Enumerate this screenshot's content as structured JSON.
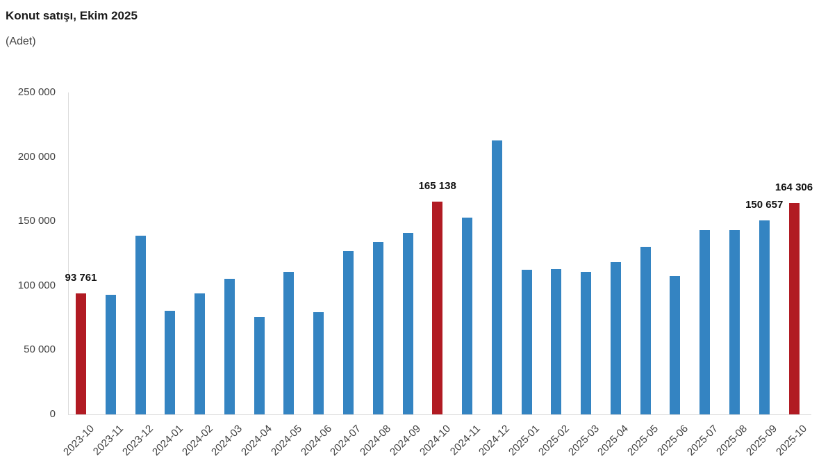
{
  "header": {
    "title": "Konut satışı, Ekim 2025",
    "subtitle": "(Adet)"
  },
  "chart_data": {
    "type": "bar",
    "title": "Konut satışı, Ekim 2025",
    "subtitle": "(Adet)",
    "xlabel": "",
    "ylabel": "Adet",
    "ylim": [
      0,
      250000
    ],
    "grid": false,
    "legend": "none",
    "categories": [
      "2023-10",
      "2023-11",
      "2023-12",
      "2024-01",
      "2024-02",
      "2024-03",
      "2024-04",
      "2024-05",
      "2024-06",
      "2024-07",
      "2024-08",
      "2024-09",
      "2024-10",
      "2024-11",
      "2024-12",
      "2025-01",
      "2025-02",
      "2025-03",
      "2025-04",
      "2025-05",
      "2025-06",
      "2025-07",
      "2025-08",
      "2025-09",
      "2025-10"
    ],
    "values": [
      93761,
      93014,
      138577,
      80308,
      93902,
      105476,
      75569,
      110588,
      79313,
      127088,
      134155,
      140919,
      165138,
      153014,
      212637,
      112173,
      112818,
      110795,
      118359,
      130025,
      107723,
      142858,
      143319,
      150657,
      164306
    ],
    "ytick_values": [
      0,
      50000,
      100000,
      150000,
      200000,
      250000
    ],
    "ytick_labels": [
      "0",
      "50 000",
      "100 000",
      "150 000",
      "200 000",
      "250 000"
    ],
    "highlight_categories": [
      "2023-10",
      "2024-10",
      "2025-10"
    ],
    "annotations": [
      {
        "category": "2023-10",
        "text": "93 761"
      },
      {
        "category": "2024-10",
        "text": "165 138"
      },
      {
        "category": "2025-09",
        "text": "150 657"
      },
      {
        "category": "2025-10",
        "text": "164 306"
      }
    ],
    "colors": {
      "bar": "#3484C2",
      "highlight": "#B11B23",
      "axis": "#DCDCDC",
      "tick_text": "#404040",
      "annotation_text": "#111111"
    }
  }
}
